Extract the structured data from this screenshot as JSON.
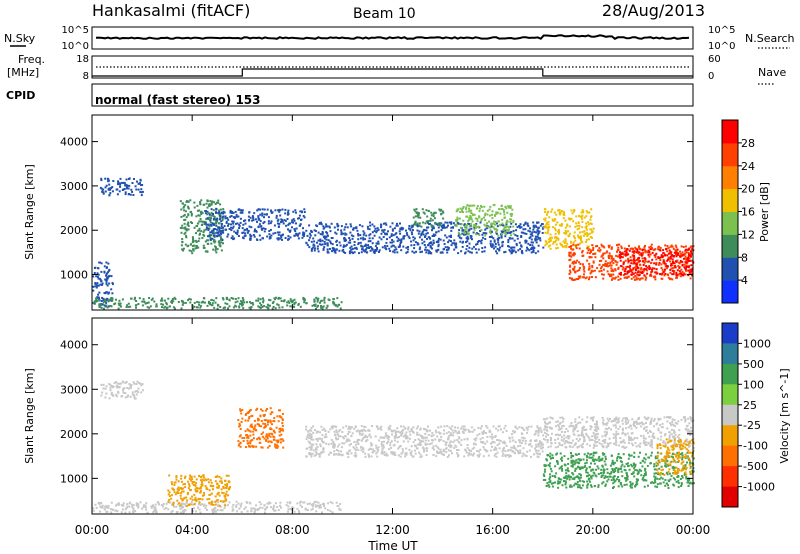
{
  "header": {
    "station": "Hankasalmi (fitACF)",
    "beam": "Beam 10",
    "date": "28/Aug/2013"
  },
  "status_panels": {
    "nsky_label": "N.Sky",
    "nsky_ticks": [
      "10^5",
      "10^0"
    ],
    "nsearch_label": "N.Search",
    "nsearch_ticks": [
      "10^5",
      "10^0"
    ],
    "freq_label": "Freq.",
    "freq_unit": "[MHz]",
    "freq_ticks": [
      "18",
      "8"
    ],
    "nave_label": "Nave",
    "nave_ticks": [
      "60",
      "0"
    ],
    "cpid_label": "CPID",
    "cpid_text": "normal (fast stereo) 153"
  },
  "chart_data": [
    {
      "type": "heatmap",
      "name": "power",
      "ylabel": "Slant Range [km]",
      "y_ticks": [
        "1000",
        "2000",
        "3000",
        "4000"
      ],
      "ylim": [
        200,
        4600
      ],
      "xlim_hours": [
        0,
        24
      ],
      "colorbar_label": "Power [dB]",
      "colorbar_ticks": [
        "4",
        "8",
        "12",
        "16",
        "20",
        "24",
        "28"
      ],
      "colorbar_colors": [
        "#1030ff",
        "#2050b0",
        "#3e8c5a",
        "#7cc050",
        "#f0c000",
        "#ff8000",
        "#ff4000",
        "#ff0000"
      ],
      "echo_regions": [
        {
          "t0": 0.0,
          "t1": 0.8,
          "r0": 300,
          "r1": 1300,
          "color": "#2050b0"
        },
        {
          "t0": 0.0,
          "t1": 10.0,
          "r0": 250,
          "r1": 500,
          "color": "#3e8c5a"
        },
        {
          "t0": 0.3,
          "t1": 2.0,
          "r0": 2800,
          "r1": 3200,
          "color": "#2050b0"
        },
        {
          "t0": 3.5,
          "t1": 5.2,
          "r0": 1500,
          "r1": 2700,
          "color": "#3e8c5a"
        },
        {
          "t0": 4.5,
          "t1": 8.5,
          "r0": 1800,
          "r1": 2500,
          "color": "#2050b0"
        },
        {
          "t0": 8.5,
          "t1": 18.0,
          "r0": 1500,
          "r1": 2200,
          "color": "#2050b0"
        },
        {
          "t0": 12.8,
          "t1": 14.0,
          "r0": 2100,
          "r1": 2500,
          "color": "#3e8c5a"
        },
        {
          "t0": 14.5,
          "t1": 16.8,
          "r0": 1900,
          "r1": 2600,
          "color": "#7cc050"
        },
        {
          "t0": 18.0,
          "t1": 20.0,
          "r0": 1600,
          "r1": 2500,
          "color": "#f0c000"
        },
        {
          "t0": 19.0,
          "t1": 24.0,
          "r0": 900,
          "r1": 1700,
          "color": "#ff4000"
        },
        {
          "t0": 21.0,
          "t1": 24.0,
          "r0": 1000,
          "r1": 1600,
          "color": "#ff0000"
        }
      ]
    },
    {
      "type": "heatmap",
      "name": "velocity",
      "ylabel": "Slant Range [km]",
      "y_ticks": [
        "1000",
        "2000",
        "3000",
        "4000"
      ],
      "ylim": [
        200,
        4600
      ],
      "xlabel": "Time UT",
      "x_ticks": [
        "00:00",
        "04:00",
        "08:00",
        "12:00",
        "16:00",
        "20:00",
        "00:00"
      ],
      "xlim_hours": [
        0,
        24
      ],
      "colorbar_label": "Velocity [m s^-1]",
      "colorbar_ticks": [
        "1000",
        "500",
        "100",
        "25",
        "-25",
        "-100",
        "-500",
        "-1000"
      ],
      "colorbar_colors": [
        "#1a3cc8",
        "#2e7d9a",
        "#3ea050",
        "#7cd040",
        "#c8c8c8",
        "#f0a000",
        "#ff7000",
        "#ff3000",
        "#e00000"
      ],
      "echo_regions": [
        {
          "t0": 0.0,
          "t1": 10.0,
          "r0": 250,
          "r1": 500,
          "color": "#c8c8c8"
        },
        {
          "t0": 0.3,
          "t1": 2.0,
          "r0": 2800,
          "r1": 3200,
          "color": "#c8c8c8"
        },
        {
          "t0": 3.0,
          "t1": 5.5,
          "r0": 400,
          "r1": 1100,
          "color": "#f0a000"
        },
        {
          "t0": 5.8,
          "t1": 7.6,
          "r0": 1700,
          "r1": 2600,
          "color": "#ff7000"
        },
        {
          "t0": 8.5,
          "t1": 18.0,
          "r0": 1500,
          "r1": 2200,
          "color": "#c8c8c8"
        },
        {
          "t0": 18.0,
          "t1": 24.0,
          "r0": 800,
          "r1": 1600,
          "color": "#3ea050"
        },
        {
          "t0": 18.0,
          "t1": 24.0,
          "r0": 1700,
          "r1": 2400,
          "color": "#c8c8c8"
        },
        {
          "t0": 22.5,
          "t1": 24.0,
          "r0": 1100,
          "r1": 1900,
          "color": "#f0a000"
        }
      ]
    }
  ]
}
